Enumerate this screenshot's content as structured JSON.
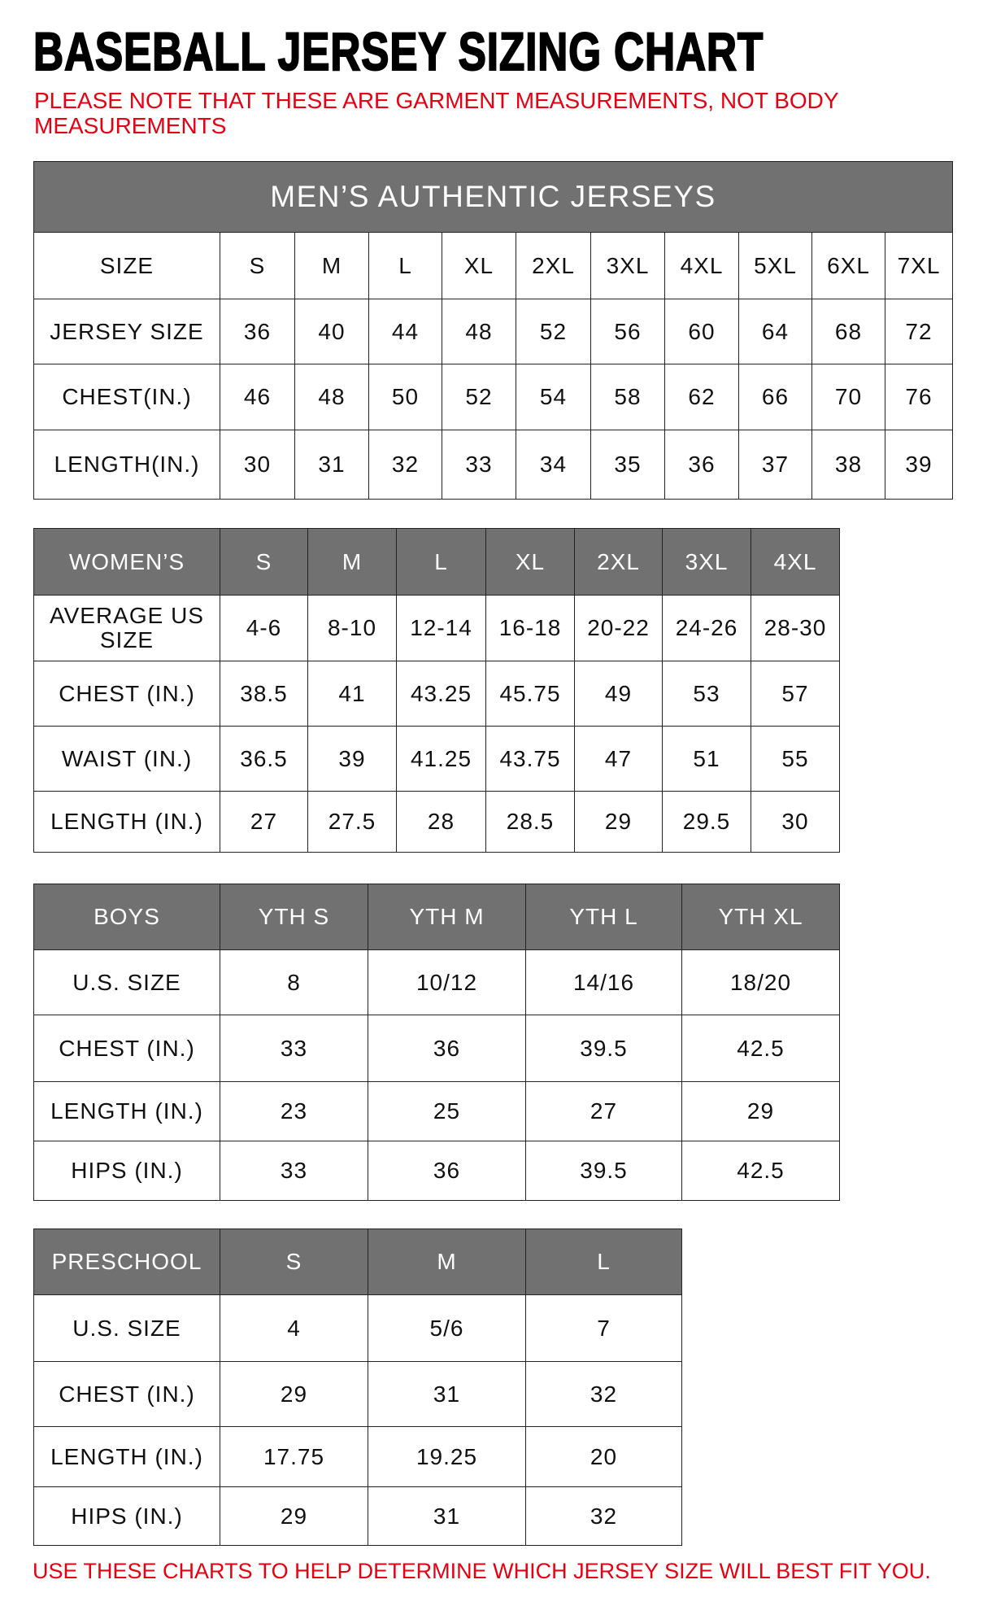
{
  "title": "BASEBALL JERSEY SIZING CHART",
  "note": "PLEASE NOTE THAT THESE ARE GARMENT MEASUREMENTS, NOT BODY MEASUREMENTS",
  "footer": "USE THESE CHARTS TO HELP DETERMINE WHICH JERSEY SIZE WILL BEST FIT YOU.",
  "colors": {
    "header_bg": "#717171",
    "note_red": "#e60012"
  },
  "tables": [
    {
      "id": "mens",
      "caption": "MEN’S AUTHENTIC JERSEYS",
      "header_in_band": false,
      "header": [
        "SIZE",
        "S",
        "M",
        "L",
        "XL",
        "2XL",
        "3XL",
        "4XL",
        "5XL",
        "6XL",
        "7XL"
      ],
      "rows": [
        [
          "JERSEY SIZE",
          "36",
          "40",
          "44",
          "48",
          "52",
          "56",
          "60",
          "64",
          "68",
          "72"
        ],
        [
          "CHEST(IN.)",
          "46",
          "48",
          "50",
          "52",
          "54",
          "58",
          "62",
          "66",
          "70",
          "76"
        ],
        [
          "LENGTH(IN.)",
          "30",
          "31",
          "32",
          "33",
          "34",
          "35",
          "36",
          "37",
          "38",
          "39"
        ]
      ]
    },
    {
      "id": "womens",
      "header_in_band": true,
      "header": [
        "WOMEN’S",
        "S",
        "M",
        "L",
        "XL",
        "2XL",
        "3XL",
        "4XL"
      ],
      "rows": [
        [
          "AVERAGE US SIZE",
          "4-6",
          "8-10",
          "12-14",
          "16-18",
          "20-22",
          "24-26",
          "28-30"
        ],
        [
          "CHEST (IN.)",
          "38.5",
          "41",
          "43.25",
          "45.75",
          "49",
          "53",
          "57"
        ],
        [
          "WAIST (IN.)",
          "36.5",
          "39",
          "41.25",
          "43.75",
          "47",
          "51",
          "55"
        ],
        [
          "LENGTH (IN.)",
          "27",
          "27.5",
          "28",
          "28.5",
          "29",
          "29.5",
          "30"
        ]
      ]
    },
    {
      "id": "boys",
      "header_in_band": true,
      "header": [
        "BOYS",
        "YTH S",
        "YTH M",
        "YTH L",
        "YTH XL"
      ],
      "rows": [
        [
          "U.S. SIZE",
          "8",
          "10/12",
          "14/16",
          "18/20"
        ],
        [
          "CHEST (IN.)",
          "33",
          "36",
          "39.5",
          "42.5"
        ],
        [
          "LENGTH (IN.)",
          "23",
          "25",
          "27",
          "29"
        ],
        [
          "HIPS (IN.)",
          "33",
          "36",
          "39.5",
          "42.5"
        ]
      ]
    },
    {
      "id": "preschool",
      "header_in_band": true,
      "header": [
        "PRESCHOOL",
        "S",
        "M",
        "L"
      ],
      "rows": [
        [
          "U.S. SIZE",
          "4",
          "5/6",
          "7"
        ],
        [
          "CHEST (IN.)",
          "29",
          "31",
          "32"
        ],
        [
          "LENGTH (IN.)",
          "17.75",
          "19.25",
          "20"
        ],
        [
          "HIPS (IN.)",
          "29",
          "31",
          "32"
        ]
      ]
    }
  ]
}
